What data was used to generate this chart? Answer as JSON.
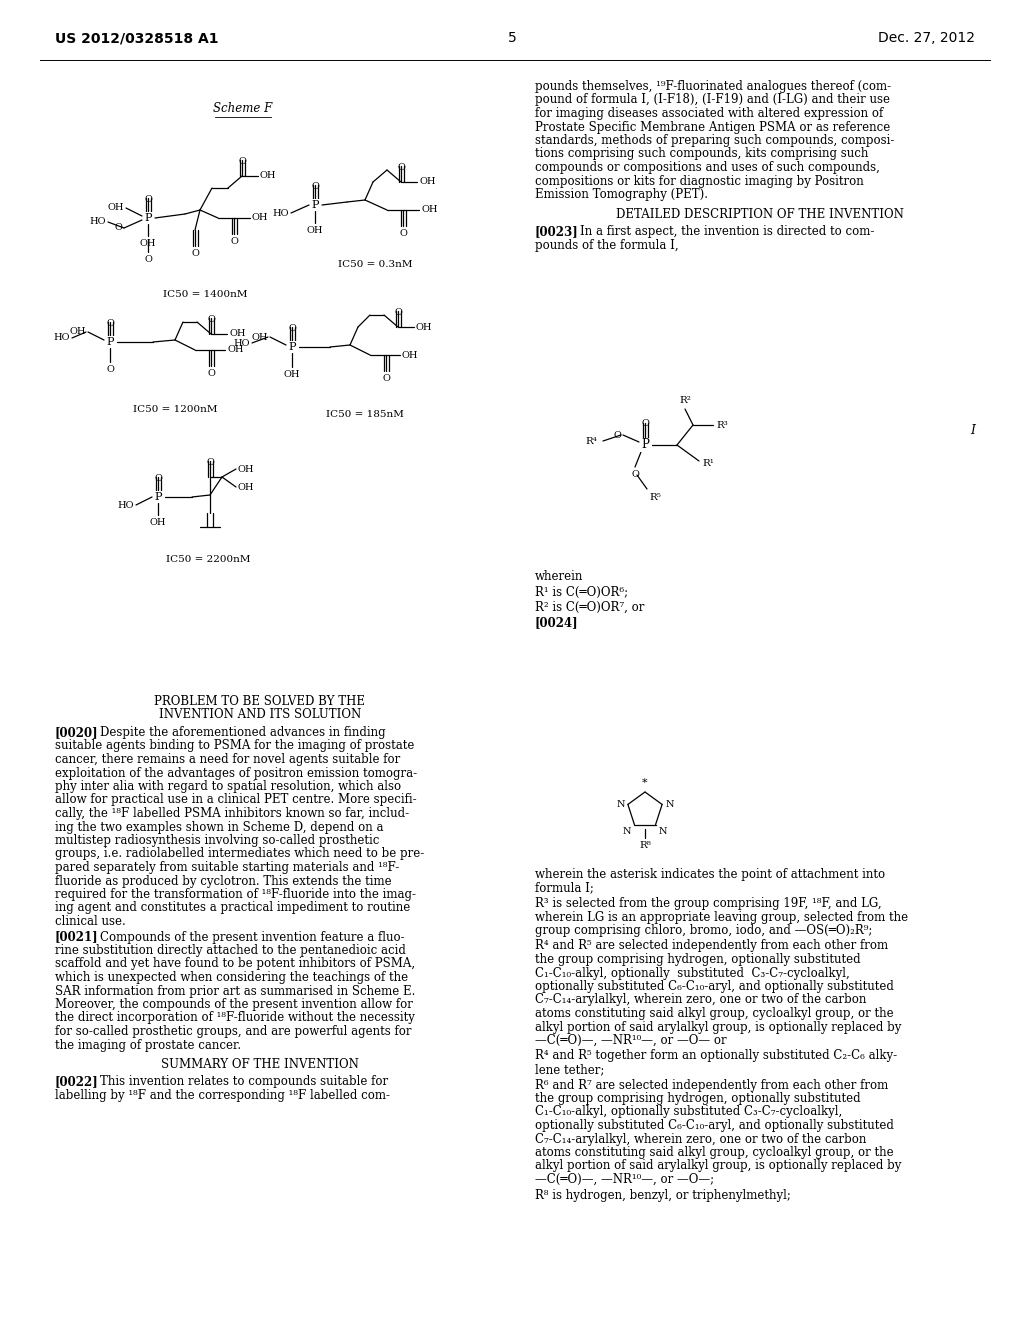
{
  "bg_color": "#ffffff",
  "header_left": "US 2012/0328518 A1",
  "header_right": "Dec. 27, 2012",
  "page_number": "5",
  "scheme_label": "Scheme F",
  "ic50_labels": [
    "IC50 = 1400nM",
    "IC50 = 0.3nM",
    "IC50 = 1200nM",
    "IC50 = 185nM",
    "IC50 = 2200nM"
  ],
  "right_para1": [
    "pounds themselves, ¹⁹F-fluorinated analogues thereof (com-",
    "pound of formula I, (I-F18), (I-F19) and (I-LG) and their use",
    "for imaging diseases associated with altered expression of",
    "Prostate Specific Membrane Antigen PSMA or as reference",
    "standards, methods of preparing such compounds, composi-",
    "tions comprising such compounds, kits comprising such",
    "compounds or compositions and uses of such compounds,",
    "compositions or kits for diagnostic imaging by Positron",
    "Emission Tomography (PET)."
  ],
  "detailed_desc": "DETAILED DESCRIPTION OF THE INVENTION",
  "para0023_first": "In a first aspect, the invention is directed to com-",
  "para0023_second": "pounds of the formula I,",
  "formula_I_label": "I",
  "wherein": "wherein",
  "R1_def": "R¹ is C(═O)OR⁶;",
  "R2_def": "R² is C(═O)OR⁷, or",
  "tag_0024": "[0024]",
  "after_tetrazole": [
    "wherein the asterisk indicates the point of attachment into",
    "formula I;"
  ],
  "R3_def": [
    "R³ is selected from the group comprising 19F, ¹⁸F, and LG,",
    "wherein LG is an appropriate leaving group, selected from the",
    "group comprising chloro, bromo, iodo, and —OS(═O)₂R⁹;"
  ],
  "R45_def": [
    "R⁴ and R⁵ are selected independently from each other from",
    "the group comprising hydrogen, optionally substituted",
    "C₁-C₁₀-alkyl, optionally  substituted  C₃-C₇-cycloalkyl,",
    "optionally substituted C₆-C₁₀-aryl, and optionally substituted",
    "C₇-C₁₄-arylalkyl, wherein zero, one or two of the carbon",
    "atoms constituting said alkyl group, cycloalkyl group, or the",
    "alkyl portion of said arylalkyl group, is optionally replaced by",
    "—C(═O)—, —NR¹⁰—, or —O— or"
  ],
  "R45_together": [
    "R⁴ and R⁵ together form an optionally substituted C₂-C₆ alky-",
    "lene tether;"
  ],
  "R67_def": [
    "R⁶ and R⁷ are selected independently from each other from",
    "the group comprising hydrogen, optionally substituted",
    "C₁-C₁₀-alkyl, optionally substituted C₃-C₇-cycloalkyl,",
    "optionally substituted C₆-C₁₀-aryl, and optionally substituted",
    "C₇-C₁₄-arylalkyl, wherein zero, one or two of the carbon",
    "atoms constituting said alkyl group, cycloalkyl group, or the",
    "alkyl portion of said arylalkyl group, is optionally replaced by",
    "—C(═O)—, —NR¹⁰—, or —O—;"
  ],
  "R8_def": "R⁸ is hydrogen, benzyl, or triphenylmethyl;",
  "prob_header": [
    "PROBLEM TO BE SOLVED BY THE",
    "INVENTION AND ITS SOLUTION"
  ],
  "para0020_first": "Despite the aforementioned advances in finding",
  "para0020_rest": [
    "suitable agents binding to PSMA for the imaging of prostate",
    "cancer, there remains a need for novel agents suitable for",
    "exploitation of the advantages of positron emission tomogra-",
    "phy inter alia with regard to spatial resolution, which also",
    "allow for practical use in a clinical PET centre. More specifi-",
    "cally, the ¹⁸F labelled PSMA inhibitors known so far, includ-",
    "ing the two examples shown in Scheme D, depend on a",
    "multistep radiosynthesis involving so-called prosthetic",
    "groups, i.e. radiolabelled intermediates which need to be pre-",
    "pared separately from suitable starting materials and ¹⁸F-",
    "fluoride as produced by cyclotron. This extends the time",
    "required for the transformation of ¹⁸F-fluoride into the imag-",
    "ing agent and constitutes a practical impediment to routine",
    "clinical use."
  ],
  "para0021_first": "Compounds of the present invention feature a fluo-",
  "para0021_rest": [
    "rine substitution directly attached to the pentanedioic acid",
    "scaffold and yet have found to be potent inhibitors of PSMA,",
    "which is unexpected when considering the teachings of the",
    "SAR information from prior art as summarised in Scheme E.",
    "Moreover, the compounds of the present invention allow for",
    "the direct incorporation of ¹⁸F-fluoride without the necessity",
    "for so-called prosthetic groups, and are powerful agents for",
    "the imaging of prostate cancer."
  ],
  "summary_header": "SUMMARY OF THE INVENTION",
  "para0022_first": "This invention relates to compounds suitable for",
  "para0022_second": "labelling by ¹⁸F and the corresponding ¹⁸F labelled com-"
}
